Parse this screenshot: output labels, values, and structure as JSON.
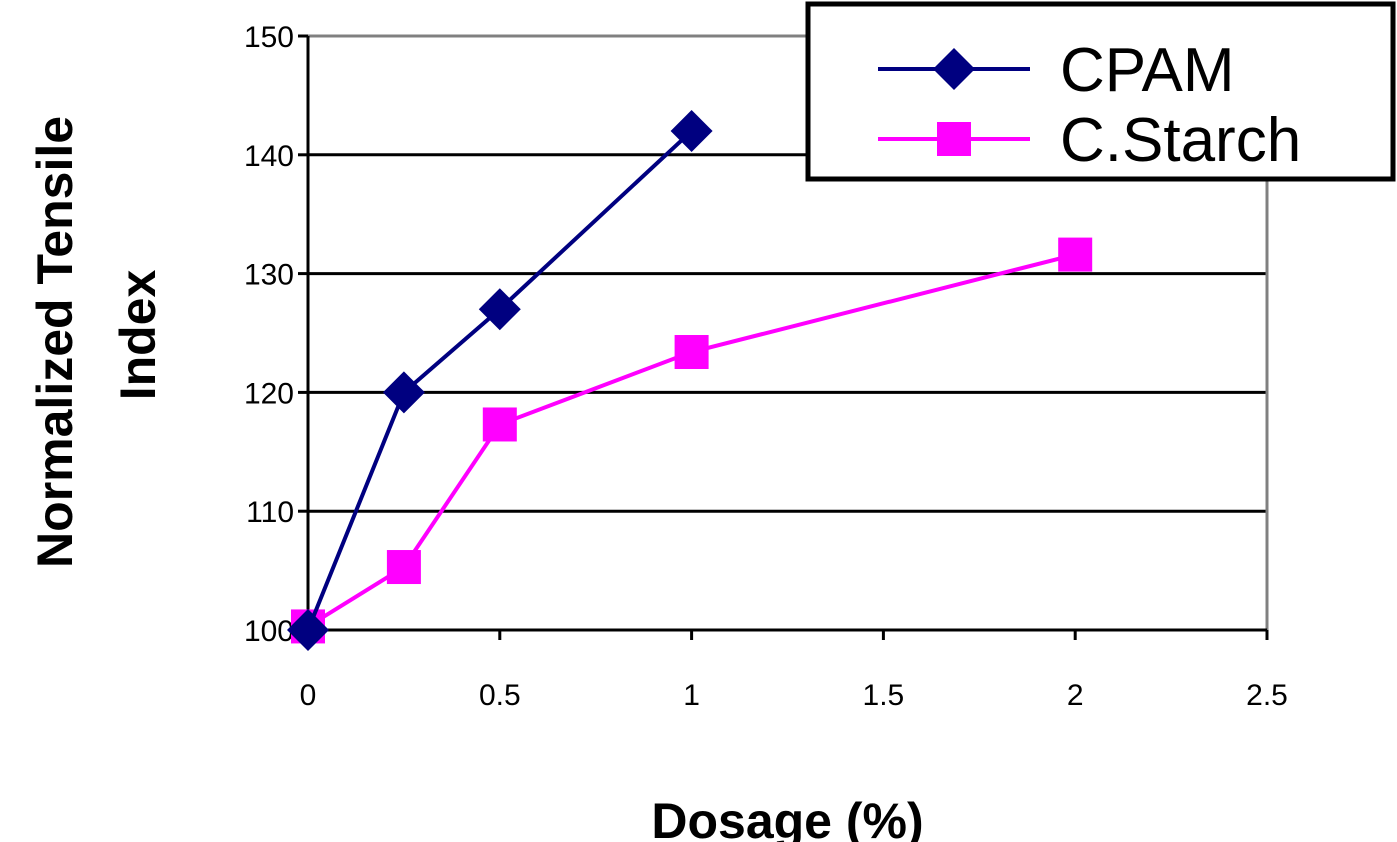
{
  "chart_data": {
    "type": "line",
    "xlabel": "Dosage (%)",
    "ylabel_lines": [
      "Normalized Tensile",
      "Index"
    ],
    "xlim": [
      0,
      2.5
    ],
    "ylim": [
      100,
      150
    ],
    "x_ticks": [
      0,
      0.5,
      1,
      1.5,
      2,
      2.5
    ],
    "x_tick_labels": [
      "0",
      "0.5",
      "1",
      "1.5",
      "2",
      "2.5"
    ],
    "y_ticks": [
      100,
      110,
      120,
      130,
      140,
      150
    ],
    "y_tick_labels": [
      "100",
      "110",
      "120",
      "130",
      "140",
      "150"
    ],
    "grid": "horizontal",
    "legend_position": "top-right",
    "series": [
      {
        "name": "CPAM",
        "color": "#000080",
        "marker": "diamond",
        "x": [
          0,
          0.25,
          0.5,
          1
        ],
        "y": [
          100,
          120,
          127,
          142
        ]
      },
      {
        "name": "C.Starch",
        "color": "#ff00ff",
        "marker": "square",
        "x": [
          0,
          0.25,
          0.5,
          1,
          2
        ],
        "y": [
          100.3,
          105.3,
          117.3,
          123.4,
          131.6
        ]
      }
    ]
  }
}
